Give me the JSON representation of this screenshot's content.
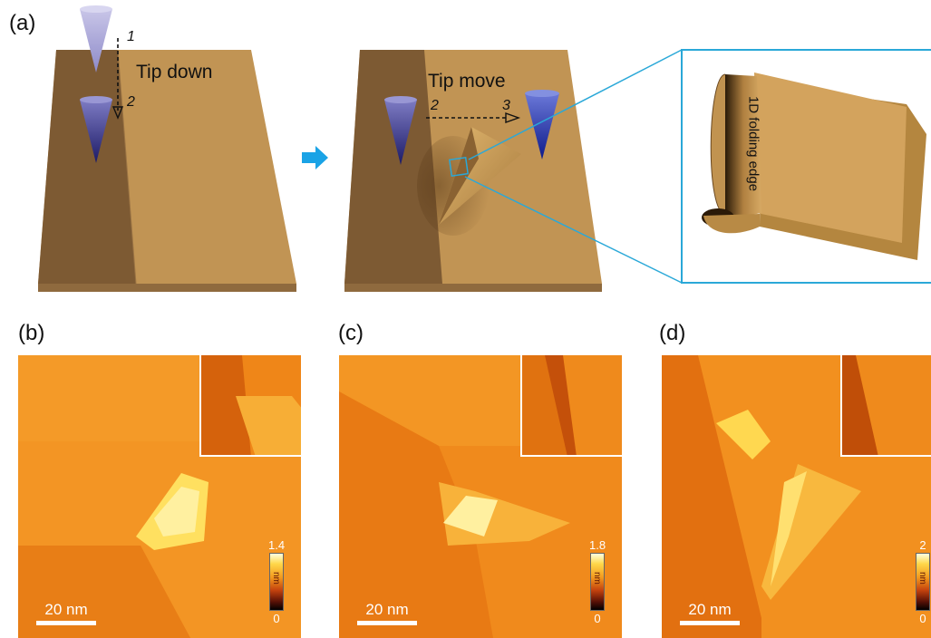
{
  "panel_labels": {
    "a": "(a)",
    "b": "(b)",
    "c": "(c)",
    "d": "(d)"
  },
  "schematic": {
    "step1_label": "1",
    "step2_label": "2",
    "step3_label": "3",
    "tip_down": "Tip down",
    "tip_move": "Tip move",
    "folding_edge": "1D folding edge"
  },
  "afm_panels": [
    {
      "id": "b",
      "scalebar": "20 nm",
      "cbar_max": "1.4",
      "cbar_min": "0",
      "unit": "nm"
    },
    {
      "id": "c",
      "scalebar": "20 nm",
      "cbar_max": "1.8",
      "cbar_min": "0",
      "unit": "nm"
    },
    {
      "id": "d",
      "scalebar": "20 nm",
      "cbar_max": "2",
      "cbar_min": "0",
      "unit": "nm"
    }
  ],
  "colors": {
    "substrate_dark": "#7a5630",
    "substrate_light": "#c09254",
    "tip": "#2a2a80",
    "arrow": "#1aa3e6",
    "zoom_box": "#2aa8d8"
  }
}
